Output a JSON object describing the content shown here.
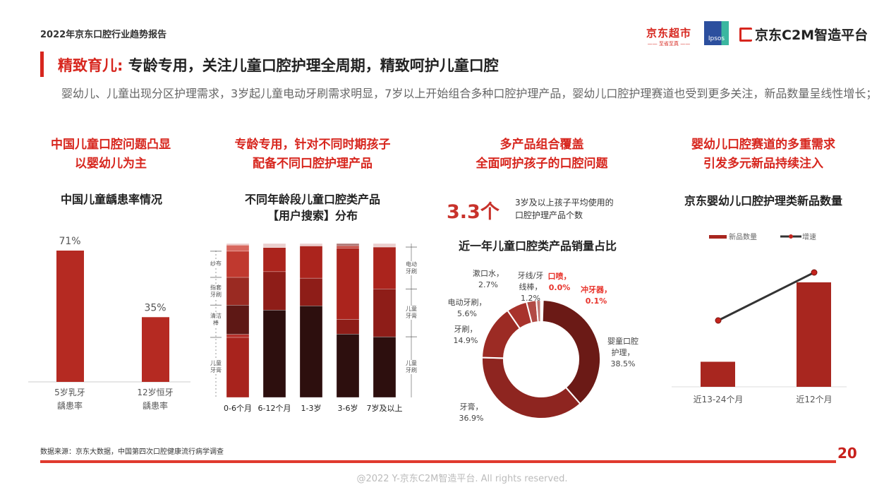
{
  "header": {
    "report_title": "2022年京东口腔行业趋势报告",
    "logo_supermarket": "京东超市",
    "logo_supermarket_sub": "—— 至省至真 ——",
    "logo_ipsos": "Ipsos",
    "logo_c2m": "京东C2M智造平台"
  },
  "title": {
    "highlight": "精致育儿:",
    "rest": " 专龄专用，关注儿童口腔护理全周期，精致呵护儿童口腔"
  },
  "subtitle": "婴幼儿、儿童出现分区护理需求，3岁起儿童电动牙刷需求明显，7岁以上开始组合多种口腔护理产品，婴幼儿口腔护理赛道也受到更多关注，新品数量呈线性增长；",
  "columns": [
    {
      "head1": "中国儿童口腔问题凸显",
      "head2": "以婴幼儿为主"
    },
    {
      "head1": "专龄专用，针对不同时期孩子",
      "head2": "配备不同口腔护理产品"
    },
    {
      "head1": "多产品组合覆盖",
      "head2": "全面呵护孩子的口腔问题"
    },
    {
      "head1": "婴幼儿口腔赛道的多重需求",
      "head2": "引发多元新品持续注入"
    }
  ],
  "stat": {
    "value": "3.3个",
    "note1": "3岁及以上孩子平均使用的",
    "note2": "口腔护理产品个数"
  },
  "chart_data": [
    {
      "type": "bar",
      "title": "中国儿童龋患率情况",
      "categories": [
        "5岁乳牙|龋患率",
        "12岁恒牙|龋患率"
      ],
      "values": [
        71,
        35
      ],
      "labels": [
        "71%",
        "35%"
      ],
      "ylim": [
        0,
        100
      ],
      "color": "#b52a22"
    },
    {
      "type": "bar",
      "stacked": true,
      "title1": "不同年龄段儿童口腔类产品",
      "title2": "【用户搜索】分布",
      "categories": [
        "0-6个月",
        "6-12个月",
        "1-3岁",
        "3-6岁",
        "7岁及以上"
      ],
      "unit": "percent",
      "bars": [
        [
          {
            "v": 39,
            "c": "#a8231d",
            "label": "儿童牙膏"
          },
          {
            "v": 2,
            "c": "#b8302a",
            "label": ""
          },
          {
            "v": 19,
            "c": "#5e1815",
            "label": "清洁棒"
          },
          {
            "v": 18,
            "c": "#9a2a22",
            "label": "指套牙刷"
          },
          {
            "v": 17,
            "c": "#c0392f",
            "label": "纱布"
          },
          {
            "v": 4,
            "c": "#d8675e",
            "label": ""
          },
          {
            "v": 1,
            "c": "#ebc9c8",
            "label": ""
          }
        ],
        [
          {
            "v": 56.8,
            "c": "#2d0f0e"
          },
          {
            "v": 24.9,
            "c": "#8e1d18"
          },
          {
            "v": 15.7,
            "c": "#ab241d"
          },
          {
            "v": 2.6,
            "c": "#ebcfce"
          }
        ],
        [
          {
            "v": 59.5,
            "c": "#2d0f0e"
          },
          {
            "v": 18,
            "c": "#8e1d18"
          },
          {
            "v": 20.9,
            "c": "#ab241d"
          },
          {
            "v": 1.6,
            "c": "#ebcfce"
          }
        ],
        [
          {
            "v": 41.2,
            "c": "#2d0f0e"
          },
          {
            "v": 9.5,
            "c": "#8e1d18"
          },
          {
            "v": 46.3,
            "c": "#ab241d"
          },
          {
            "v": 1.5,
            "c": "#c4483f"
          },
          {
            "v": 1.5,
            "c": "#b07a78"
          }
        ],
        [
          {
            "v": 39.4,
            "c": "#2d0f0e",
            "label": "儿童牙刷"
          },
          {
            "v": 31.1,
            "c": "#8e1d18",
            "label": "儿童牙膏"
          },
          {
            "v": 27.2,
            "c": "#ab241d",
            "label": "电动牙刷"
          },
          {
            "v": 2.3,
            "c": "#ebcfce",
            "label": ""
          }
        ]
      ]
    },
    {
      "type": "pie",
      "donut": true,
      "title": "近一年儿童口腔类产品销量占比",
      "slices": [
        {
          "name": "婴童口腔护理",
          "value": 38.5,
          "label": "38.5%",
          "color": "#6b1a16"
        },
        {
          "name": "牙膏",
          "value": 36.9,
          "label": "36.9%",
          "color": "#8e2520"
        },
        {
          "name": "牙刷",
          "value": 14.9,
          "label": "14.9%",
          "color": "#9c2b24"
        },
        {
          "name": "电动牙刷",
          "value": 5.6,
          "label": "5.6%",
          "color": "#a8332c"
        },
        {
          "name": "漱口水",
          "value": 2.7,
          "label": "2.7%",
          "color": "#b24b45"
        },
        {
          "name": "牙线/牙线棒",
          "value": 1.2,
          "label": "1.2%",
          "color": "#c07570"
        },
        {
          "name": "口喷",
          "value": 0.0,
          "label": "0.0%",
          "color": "#d08f8c",
          "highlight": "#e8342c"
        },
        {
          "name": "冲牙器",
          "value": 0.1,
          "label": "0.1%",
          "color": "#d08f8c",
          "highlight": "#e8342c"
        }
      ]
    },
    {
      "type": "bar+line",
      "title": "京东婴幼儿口腔护理类新品数量",
      "categories": [
        "近13-24个月",
        "近12个月"
      ],
      "series": [
        {
          "name": "新品数量",
          "type": "bar",
          "values": [
            24,
            100
          ],
          "color": "#a8261f"
        },
        {
          "name": "增速",
          "type": "line",
          "values": [
            45,
            78
          ],
          "color": "#333333"
        }
      ],
      "ylim": [
        0,
        110
      ]
    }
  ],
  "footer": {
    "source": "数据来源：京东大数据，中国第四次口腔健康流行病学调查",
    "page": "20",
    "copyright": "@2022 Y-京东C2M智造平台. All rights reserved."
  }
}
